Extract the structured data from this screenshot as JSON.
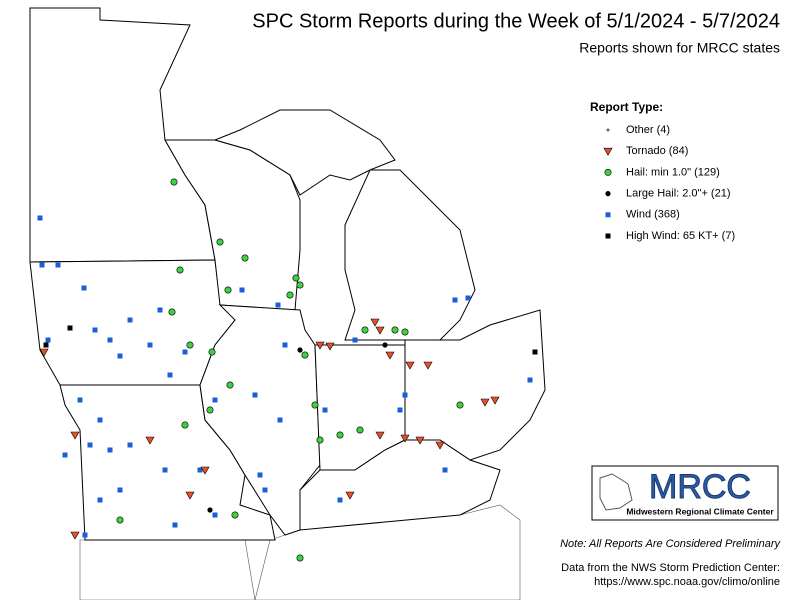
{
  "header": {
    "title": "SPC Storm Reports during the Week of 5/1/2024 - 5/7/2024",
    "subtitle": "Reports shown for MRCC states"
  },
  "legend": {
    "title": "Report Type:",
    "items": [
      "Other (4)",
      "Tornado (84)",
      "Hail: min 1.0\" (129)",
      "Large Hail: 2.0\"+ (21)",
      "Wind (368)",
      "High Wind: 65 KT+ (7)"
    ]
  },
  "logo": {
    "text": "MRCC",
    "subtitle": "Midwestern Regional Climate Center"
  },
  "notes": {
    "preliminary": "Note: All Reports Are Considered Preliminary",
    "source": "Data from the NWS Storm Prediction Center:",
    "url": "https://www.spc.noaa.gov/climo/online"
  }
}
